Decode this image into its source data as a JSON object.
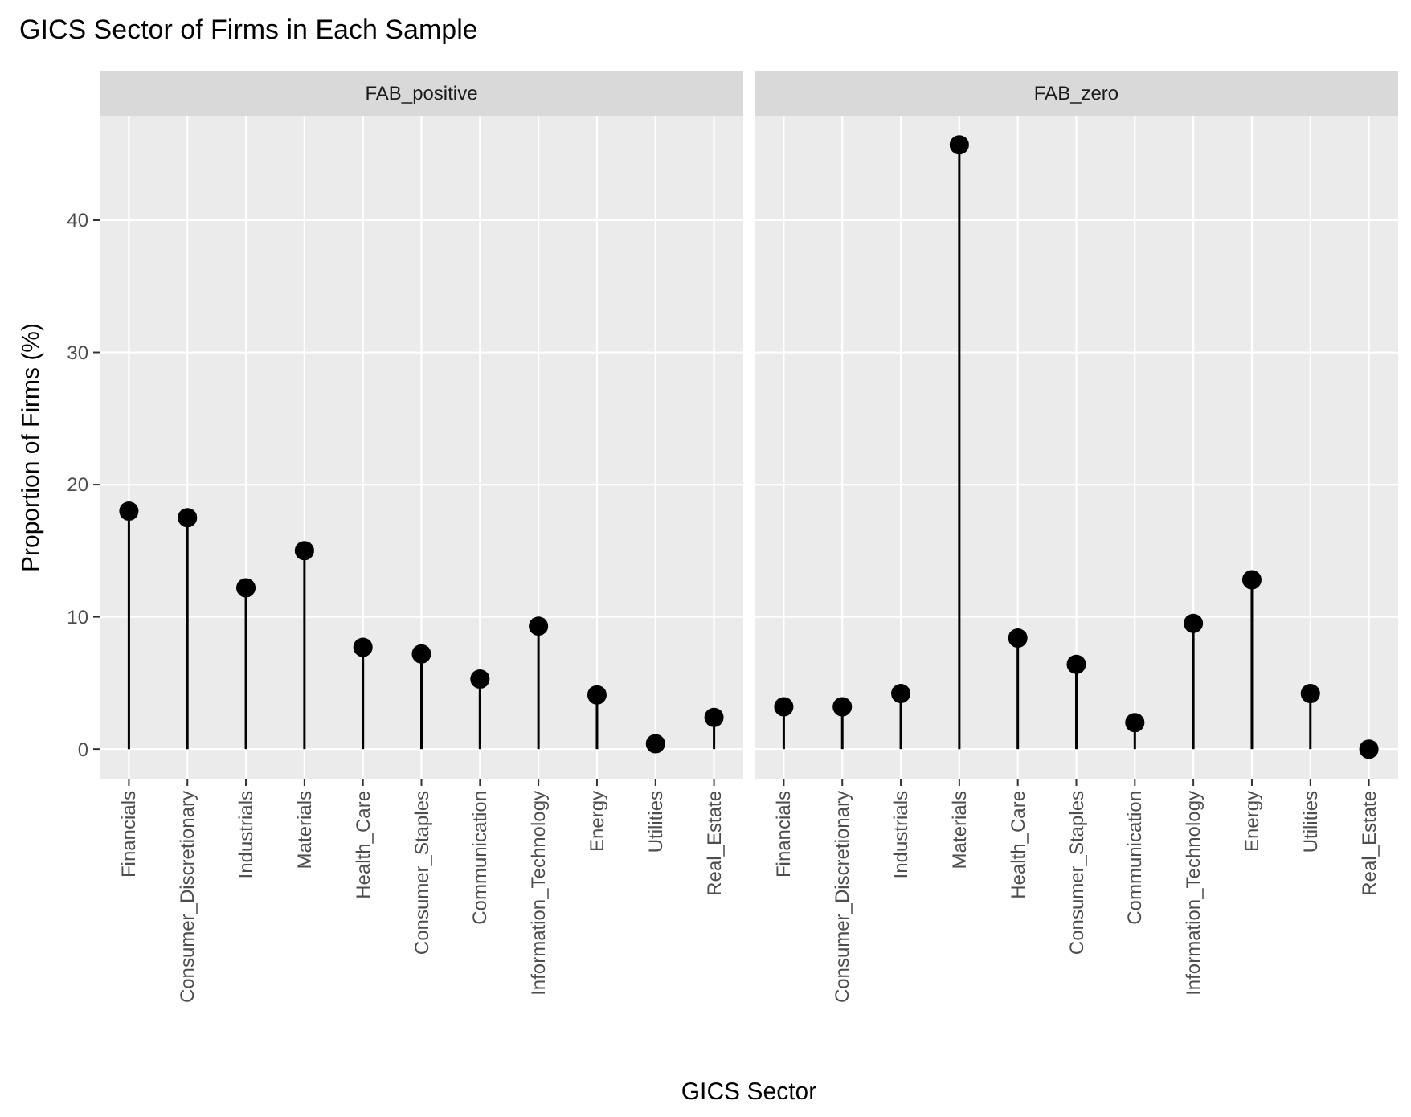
{
  "chart_data": [
    {
      "type": "lollipop",
      "title": "GICS Sector of Firms in Each Sample",
      "subtitle": "FAB_positive",
      "xlabel": "GICS Sector",
      "ylabel": "Proportion of Firms (%)",
      "categories": [
        "Financials",
        "Consumer_Discretionary",
        "Industrials",
        "Materials",
        "Health_Care",
        "Consumer_Staples",
        "Communication",
        "Information_Technology",
        "Energy",
        "Utilities",
        "Real_Estate"
      ],
      "values": [
        18.0,
        17.5,
        12.2,
        15.0,
        7.7,
        7.2,
        5.3,
        9.3,
        4.1,
        0.4,
        2.4
      ],
      "color": "#000000",
      "ylim": [
        -2.3,
        47.9
      ],
      "yticks": [
        0,
        10,
        20,
        30,
        40
      ],
      "grid": true,
      "marker": "circle"
    },
    {
      "type": "lollipop",
      "subtitle": "FAB_zero",
      "categories": [
        "Financials",
        "Consumer_Discretionary",
        "Industrials",
        "Materials",
        "Health_Care",
        "Consumer_Staples",
        "Communication",
        "Information_Technology",
        "Energy",
        "Utilities",
        "Real_Estate"
      ],
      "values": [
        3.2,
        3.2,
        4.2,
        45.7,
        8.4,
        6.4,
        2.0,
        9.5,
        12.8,
        4.2,
        0
      ],
      "color": "#000000",
      "ylim": [
        -2.3,
        47.9
      ],
      "yticks": [
        0,
        10,
        20,
        30,
        40
      ],
      "grid": true,
      "marker": "circle",
      "tick_labels": "x"
    }
  ]
}
